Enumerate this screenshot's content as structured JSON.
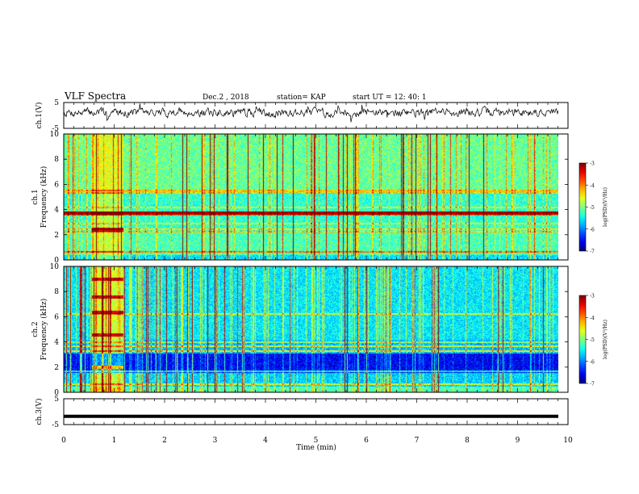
{
  "header": {
    "title": "VLF Spectra",
    "date": "Dec.2 , 2018",
    "station": "station= KAP",
    "start_ut": "start UT =  12: 40: 1"
  },
  "chart_data": [
    {
      "type": "line",
      "panel": "ch1-waveform",
      "ylabel": "ch.1(V)",
      "ylim": [
        -5,
        5
      ],
      "yticks": [
        "5",
        "-5"
      ],
      "xlim": [
        0,
        10
      ],
      "series": [
        {
          "values": "noisy waveform oscillating roughly between -2 and +3 V over 0-9.8 min"
        }
      ]
    },
    {
      "type": "heatmap",
      "panel": "ch1-spectrogram",
      "ylabel": "ch.1\nFrequency (kHz)",
      "ylabel_lines": [
        "ch.1",
        "Frequency (kHz)"
      ],
      "ylim": [
        0,
        10
      ],
      "yticks": [
        "0",
        "2",
        "4",
        "6",
        "8",
        "10"
      ],
      "xlim": [
        0,
        9.8
      ],
      "colorbar": {
        "label": "log(PSD)(V²/Hz)",
        "range": [
          -7,
          -3
        ],
        "ticks": [
          "-3",
          "-4",
          "-5",
          "-6",
          "-7"
        ]
      },
      "bands_khz": [
        0.6,
        2.2,
        2.4,
        2.9,
        3.6,
        3.85,
        4.2,
        5.3,
        5.5
      ],
      "features": "broadband vertical impulsive lines (sferics); strong narrowband line near 3.6-3.85 kHz; bright region 0.55-1.2 min"
    },
    {
      "type": "heatmap",
      "panel": "ch2-spectrogram",
      "ylabel": "ch.2\nFrequency (kHz)",
      "ylabel_lines": [
        "ch.2",
        "Frequency (kHz)"
      ],
      "ylim": [
        0,
        10
      ],
      "yticks": [
        "0",
        "2",
        "4",
        "6",
        "8",
        "10"
      ],
      "xlim": [
        0,
        9.8
      ],
      "colorbar": {
        "label": "log(PSD)(V²/Hz)",
        "range": [
          -7,
          -3
        ],
        "ticks": [
          "-3",
          "-4",
          "-5",
          "-6",
          "-7"
        ]
      },
      "bands_khz": [
        0.6,
        1.7,
        2.0,
        3.0,
        3.3,
        3.7,
        4.0,
        6.2
      ],
      "features": "low-power blue region 1-3 kHz; strong signal 0.55-1.15 min with lines at 4.6, 6.4, 7.6, 9.0 kHz"
    },
    {
      "type": "line",
      "panel": "ch3-waveform",
      "ylabel": "ch.3(V)",
      "ylim": [
        -5,
        5
      ],
      "yticks": [
        "5",
        "-5"
      ],
      "xlim": [
        0,
        10
      ],
      "series": [
        {
          "values": "constant near -1.8 V from 0 to 9.8 min"
        }
      ]
    }
  ],
  "xaxis": {
    "label": "Time (min)",
    "ticks": [
      "0",
      "1",
      "2",
      "3",
      "4",
      "5",
      "6",
      "7",
      "8",
      "9",
      "10"
    ]
  }
}
